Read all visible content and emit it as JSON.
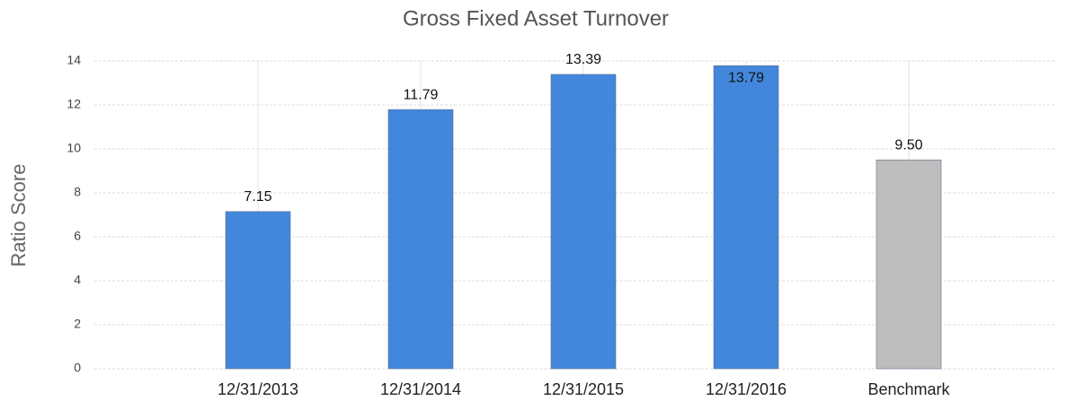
{
  "chart_data": {
    "type": "bar",
    "title": "Gross Fixed Asset Turnover",
    "y_label": "Ratio Score",
    "categories": [
      "12/31/2013",
      "12/31/2014",
      "12/31/2015",
      "12/31/2016",
      "Benchmark"
    ],
    "values": [
      7.15,
      11.79,
      13.39,
      13.79,
      9.5
    ],
    "value_labels": [
      "7.15",
      "11.79",
      "13.39",
      "13.79",
      "9.50"
    ],
    "colors": [
      "#4287dc",
      "#4287dc",
      "#4287dc",
      "#4287dc",
      "#bdbdbd"
    ],
    "ylim": [
      0,
      14
    ],
    "yticks": [
      0,
      2,
      4,
      6,
      8,
      10,
      12,
      14
    ],
    "grid": true
  }
}
